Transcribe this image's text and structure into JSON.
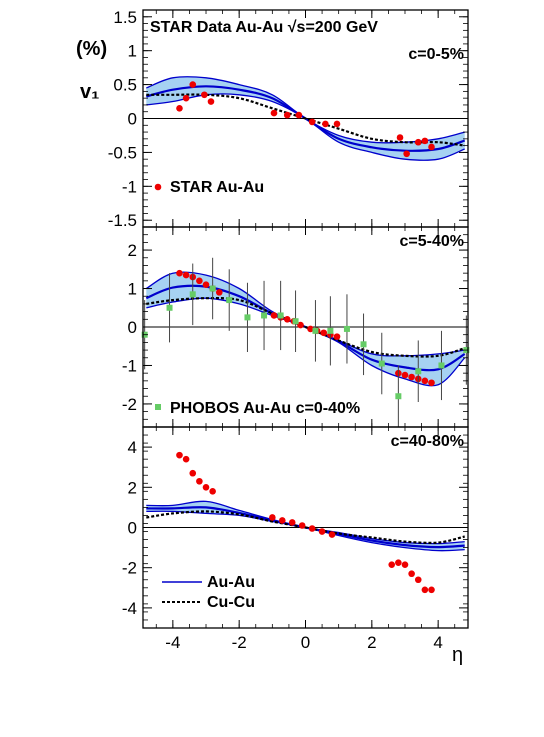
{
  "figure": {
    "header": "STAR Data  Au-Au  √s=200 GeV",
    "ylabel_unit": "(%)",
    "ylabel": "v₁",
    "xlabel": "η",
    "x_ticks": [
      "-4",
      "-2",
      "0",
      "2",
      "4"
    ]
  },
  "chart_data": [
    {
      "type": "scatter",
      "panel": "c=0-5%",
      "xlim": [
        -4.9,
        4.9
      ],
      "ylim": [
        -1.6,
        1.6
      ],
      "y_ticks": [
        "1.5",
        "1",
        "0.5",
        "0",
        "-0.5",
        "-1",
        "-1.5"
      ],
      "y_tick_values": [
        1.5,
        1,
        0.5,
        0,
        -0.5,
        -1,
        -1.5
      ],
      "annotation": "STAR  Au-Au",
      "annotation_marker": "red-circle",
      "series": [
        {
          "name": "STAR  Au-Au",
          "kind": "points",
          "color": "#ee0000",
          "x": [
            -3.8,
            -3.6,
            -3.4,
            -3.05,
            -2.85,
            -0.95,
            -0.55,
            -0.2,
            0.2,
            0.6,
            0.95,
            2.85,
            3.05,
            3.4,
            3.6,
            3.8
          ],
          "y": [
            0.15,
            0.3,
            0.5,
            0.35,
            0.25,
            0.08,
            0.05,
            0.05,
            -0.05,
            -0.08,
            -0.08,
            -0.28,
            -0.52,
            -0.35,
            -0.33,
            -0.42
          ]
        },
        {
          "name": "Au-Au",
          "kind": "band",
          "fill": "#a6d2f2",
          "stroke": "#0000cc",
          "x": [
            -4.8,
            -4.0,
            -3.0,
            -2.0,
            -1.0,
            0.0,
            1.0,
            2.0,
            3.0,
            4.0,
            4.8
          ],
          "upper": [
            0.45,
            0.6,
            0.6,
            0.5,
            0.35,
            0.0,
            -0.25,
            -0.35,
            -0.35,
            -0.3,
            -0.2
          ],
          "lower": [
            0.2,
            0.25,
            0.35,
            0.35,
            0.25,
            0.0,
            -0.35,
            -0.5,
            -0.6,
            -0.6,
            -0.45
          ]
        },
        {
          "name": "Cu-Cu",
          "kind": "dashed",
          "color": "#000000",
          "x": [
            -4.8,
            -4.0,
            -3.0,
            -2.0,
            -1.0,
            0.0,
            1.0,
            2.0,
            3.0,
            4.0,
            4.8
          ],
          "y": [
            0.35,
            0.35,
            0.35,
            0.3,
            0.15,
            0.0,
            -0.15,
            -0.3,
            -0.35,
            -0.35,
            -0.4
          ]
        }
      ]
    },
    {
      "type": "scatter",
      "panel": "c=5-40%",
      "xlim": [
        -4.9,
        4.9
      ],
      "ylim": [
        -2.6,
        2.6
      ],
      "y_ticks": [
        "2",
        "1",
        "0",
        "-1",
        "-2"
      ],
      "y_tick_values": [
        2,
        1,
        0,
        -1,
        -2
      ],
      "annotation": "PHOBOS  Au-Au  c=0-40%",
      "annotation_marker": "green-square",
      "series": [
        {
          "name": "STAR  Au-Au",
          "kind": "points",
          "color": "#ee0000",
          "x": [
            -3.8,
            -3.6,
            -3.4,
            -3.2,
            -3.0,
            -2.8,
            -2.6,
            -0.95,
            -0.75,
            -0.55,
            -0.35,
            -0.15,
            0.15,
            0.35,
            0.55,
            0.75,
            0.95,
            2.8,
            3.0,
            3.2,
            3.4,
            3.6,
            3.8
          ],
          "y": [
            1.4,
            1.35,
            1.3,
            1.2,
            1.1,
            1.0,
            0.9,
            0.3,
            0.25,
            0.2,
            0.15,
            0.05,
            -0.05,
            -0.1,
            -0.15,
            -0.2,
            -0.25,
            -1.2,
            -1.25,
            -1.3,
            -1.35,
            -1.4,
            -1.45
          ]
        },
        {
          "name": "PHOBOS  Au-Au  c=0-40%",
          "kind": "points_err",
          "color": "#66cc66",
          "x": [
            -4.85,
            -4.1,
            -3.4,
            -2.8,
            -2.3,
            -1.75,
            -1.25,
            -0.75,
            -0.3,
            0.3,
            0.75,
            1.25,
            1.75,
            2.3,
            2.8,
            3.4,
            4.1,
            4.85
          ],
          "y": [
            -0.2,
            0.5,
            0.85,
            1.0,
            0.7,
            0.25,
            0.3,
            0.3,
            0.15,
            -0.1,
            -0.1,
            -0.05,
            -0.45,
            -0.95,
            -1.8,
            -1.15,
            -1.0,
            -0.6
          ],
          "err": [
            0.9,
            0.9,
            0.8,
            0.8,
            0.8,
            0.9,
            0.9,
            0.9,
            0.8,
            0.8,
            0.9,
            0.9,
            0.8,
            0.8,
            0.8,
            0.8,
            0.9,
            0.9
          ]
        },
        {
          "name": "Au-Au",
          "kind": "band",
          "fill": "#a6d2f2",
          "stroke": "#0000cc",
          "x": [
            -4.8,
            -4.0,
            -3.0,
            -2.0,
            -1.0,
            0.0,
            1.0,
            2.0,
            3.0,
            4.0,
            4.8
          ],
          "upper": [
            1.0,
            1.4,
            1.35,
            1.0,
            0.4,
            0.0,
            -0.35,
            -0.7,
            -0.75,
            -0.7,
            -0.6
          ],
          "lower": [
            0.5,
            0.65,
            0.75,
            0.6,
            0.3,
            0.0,
            -0.4,
            -1.0,
            -1.35,
            -1.5,
            -0.8
          ]
        },
        {
          "name": "Cu-Cu",
          "kind": "dashed",
          "color": "#000000",
          "x": [
            -4.8,
            -4.0,
            -3.0,
            -2.0,
            -1.0,
            0.0,
            1.0,
            2.0,
            3.0,
            4.0,
            4.8
          ],
          "y": [
            0.6,
            0.7,
            0.75,
            0.7,
            0.35,
            0.0,
            -0.35,
            -0.65,
            -0.75,
            -0.75,
            -0.55
          ]
        }
      ]
    },
    {
      "type": "scatter",
      "panel": "c=40-80%",
      "xlim": [
        -4.9,
        4.9
      ],
      "ylim": [
        -5.0,
        5.0
      ],
      "y_ticks": [
        "4",
        "2",
        "0",
        "-2",
        "-4"
      ],
      "y_tick_values": [
        4,
        2,
        0,
        -2,
        -4
      ],
      "series": [
        {
          "name": "STAR  Au-Au",
          "kind": "points",
          "color": "#ee0000",
          "x": [
            -3.8,
            -3.6,
            -3.4,
            -3.2,
            -3.0,
            -2.8,
            -1.0,
            -0.7,
            -0.4,
            -0.1,
            0.2,
            0.5,
            0.8,
            2.6,
            2.8,
            3.0,
            3.2,
            3.4,
            3.6,
            3.8
          ],
          "y": [
            3.6,
            3.4,
            2.7,
            2.3,
            2.0,
            1.8,
            0.5,
            0.35,
            0.25,
            0.1,
            -0.05,
            -0.2,
            -0.35,
            -1.85,
            -1.75,
            -1.85,
            -2.3,
            -2.6,
            -3.1,
            -3.1
          ]
        },
        {
          "name": "Au-Au",
          "kind": "band",
          "fill": "#a6d2f2",
          "stroke": "#0000cc",
          "x": [
            -4.8,
            -4.0,
            -3.0,
            -2.0,
            -1.0,
            0.0,
            1.0,
            2.0,
            3.0,
            4.0,
            4.8
          ],
          "upper": [
            1.1,
            1.1,
            1.3,
            0.85,
            0.4,
            0.0,
            -0.25,
            -0.55,
            -0.75,
            -0.8,
            -0.7
          ],
          "lower": [
            0.8,
            0.8,
            0.7,
            0.6,
            0.3,
            0.0,
            -0.4,
            -0.75,
            -1.0,
            -1.15,
            -1.1
          ]
        },
        {
          "name": "Cu-Cu",
          "kind": "dashed",
          "color": "#000000",
          "x": [
            -4.8,
            -4.0,
            -3.0,
            -2.0,
            -1.0,
            0.0,
            1.0,
            2.0,
            3.0,
            4.0,
            4.8
          ],
          "y": [
            0.5,
            0.7,
            0.8,
            0.65,
            0.3,
            0.0,
            -0.3,
            -0.5,
            -0.7,
            -0.75,
            -0.45
          ]
        }
      ]
    }
  ],
  "legend": [
    {
      "label": "Au-Au",
      "style": "solid",
      "color": "#0000cc"
    },
    {
      "label": "Cu-Cu",
      "style": "dashed",
      "color": "#000000"
    }
  ]
}
